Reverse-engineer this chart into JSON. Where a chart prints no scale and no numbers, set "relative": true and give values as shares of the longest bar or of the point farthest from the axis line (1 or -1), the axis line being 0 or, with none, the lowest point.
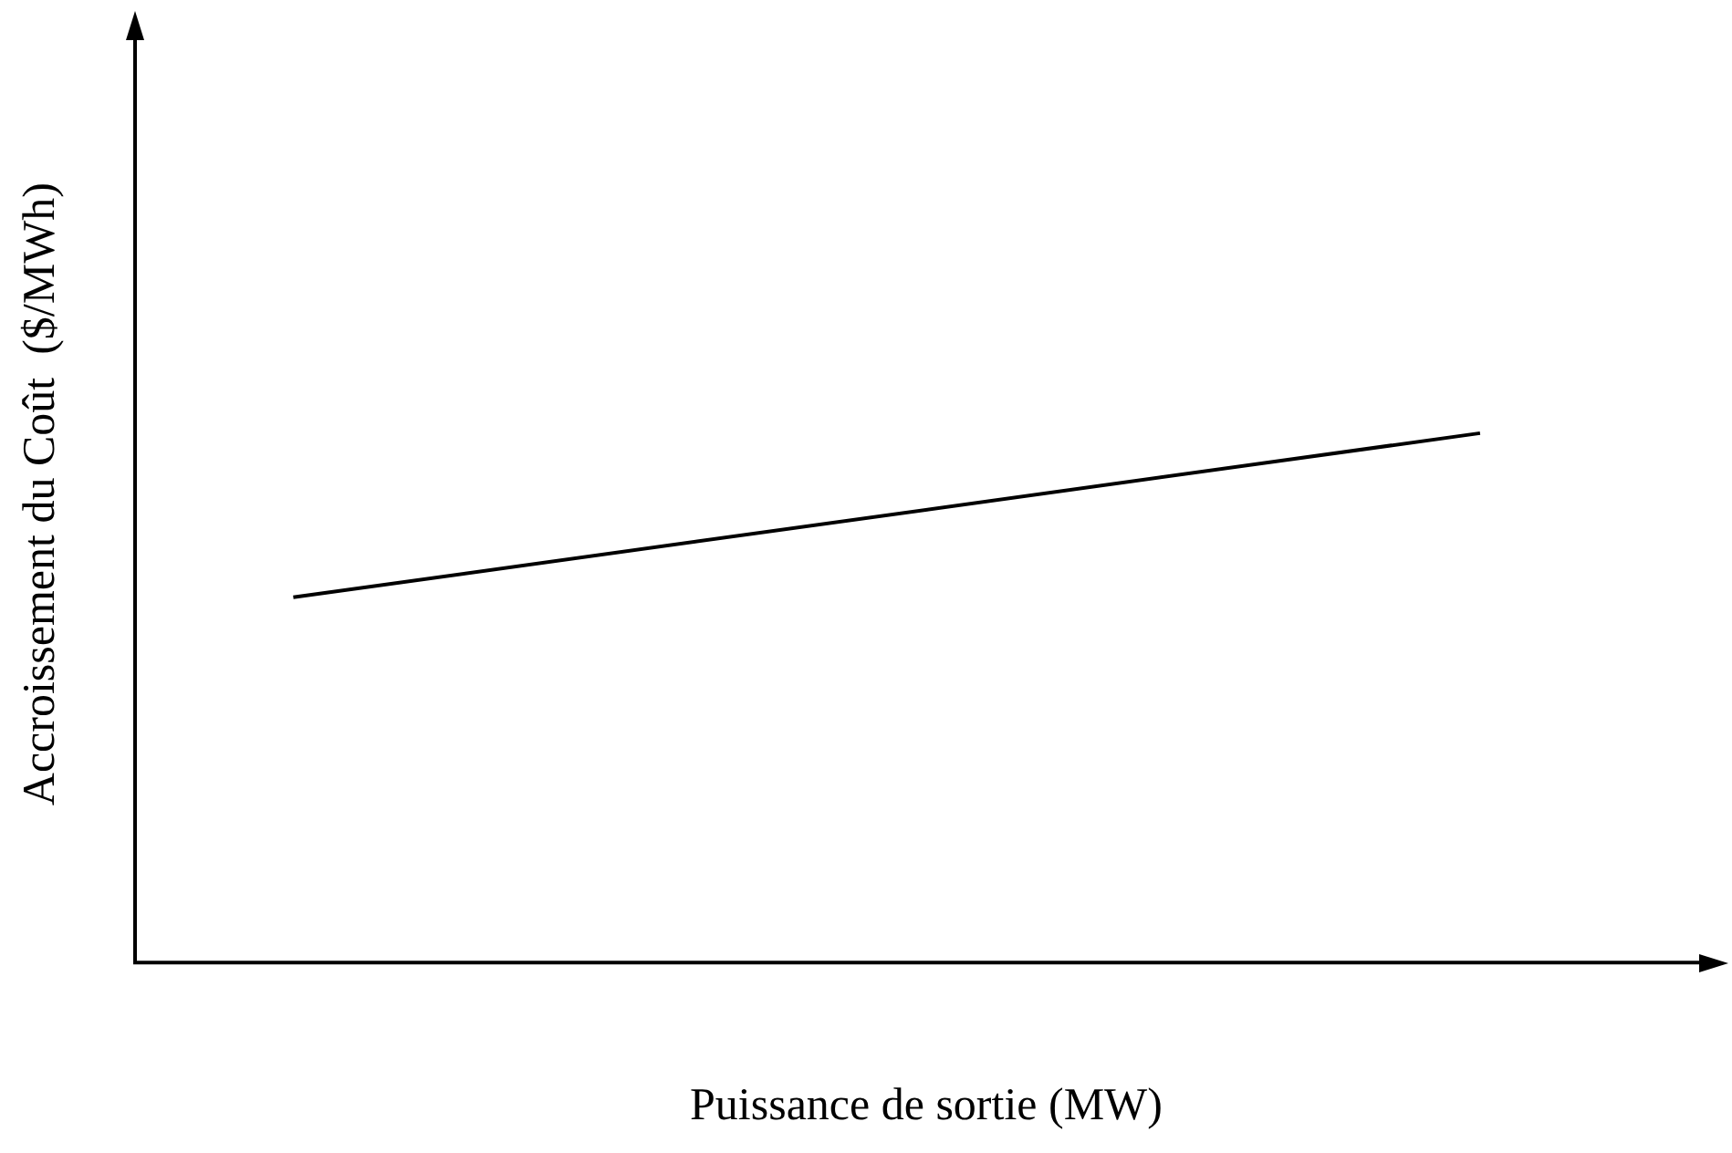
{
  "chart_data": {
    "type": "line",
    "relative": true,
    "xlabel": "Puissance de sortie (MW)",
    "ylabel": "Accroissement du Coût  ($/MWh)",
    "categories": [
      null,
      null,
      null,
      null,
      null,
      null,
      null,
      null,
      null,
      null,
      null,
      null,
      null,
      null,
      null,
      null,
      null,
      null,
      null,
      null,
      null
    ],
    "series": [
      {
        "color": "#000000",
        "values": [
          null,
          null,
          0.69,
          null,
          null,
          null,
          null,
          null,
          null,
          null,
          null,
          null,
          null,
          null,
          null,
          null,
          null,
          1,
          null,
          null,
          null
        ]
      }
    ],
    "marker": "none",
    "line_style": "solid",
    "grid": false,
    "legend": false
  }
}
